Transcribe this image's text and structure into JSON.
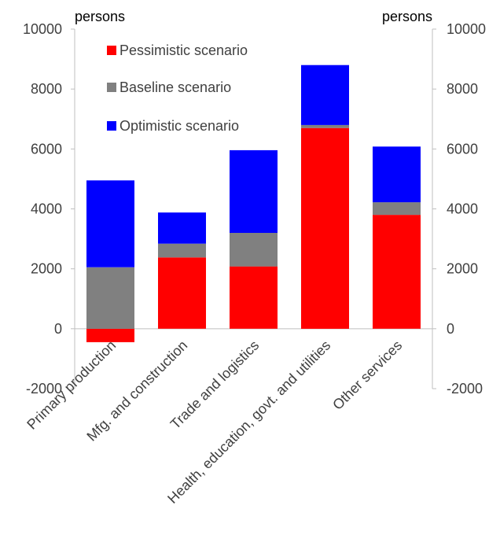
{
  "chart_data": {
    "type": "bar",
    "stacked": true,
    "left_unit": "persons",
    "right_unit": "persons",
    "ylim": [
      -2000,
      10000
    ],
    "yticks": [
      -2000,
      0,
      2000,
      4000,
      6000,
      8000,
      10000
    ],
    "ytick_labels": [
      "-2000",
      "0",
      "2000",
      "4000",
      "6000",
      "8000",
      "10000"
    ],
    "categories": [
      "Primary production",
      "Mfg. and construction",
      "Trade and logistics",
      "Health, education, govt. and utilities",
      "Other services"
    ],
    "series": [
      {
        "name": "Pessimistic scenario",
        "color": "#ff0000",
        "values": [
          -450,
          2380,
          2080,
          6700,
          3800
        ]
      },
      {
        "name": "Baseline scenario",
        "color": "#808080",
        "values": [
          2050,
          460,
          1120,
          100,
          420
        ]
      },
      {
        "name": "Optimistic scenario",
        "color": "#0000ff",
        "values": [
          2900,
          1040,
          2760,
          2000,
          1860
        ]
      }
    ],
    "legend_position": "top-left inside",
    "grid": false
  }
}
